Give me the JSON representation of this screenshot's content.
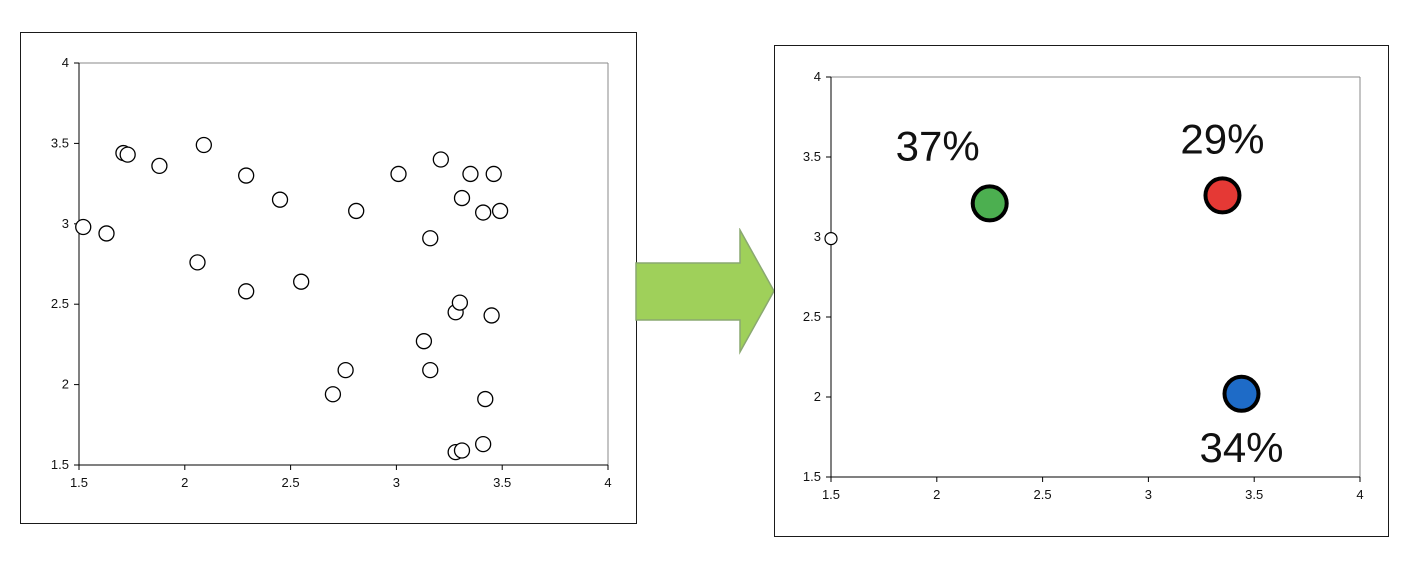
{
  "chart_data": [
    {
      "type": "scatter",
      "xlim": [
        1.5,
        4
      ],
      "ylim": [
        1.5,
        4
      ],
      "xticks": [
        "1.5",
        "2",
        "2.5",
        "3",
        "3.5",
        "4"
      ],
      "yticks": [
        "1.5",
        "2",
        "2.5",
        "3",
        "3.5",
        "4"
      ],
      "grid": false,
      "marker_fill": "#ffffff",
      "marker_edge": "#000000",
      "points": [
        [
          1.52,
          2.98
        ],
        [
          1.63,
          2.94
        ],
        [
          1.71,
          3.44
        ],
        [
          1.73,
          3.43
        ],
        [
          1.88,
          3.36
        ],
        [
          2.06,
          2.76
        ],
        [
          2.09,
          3.49
        ],
        [
          2.29,
          3.3
        ],
        [
          2.29,
          2.58
        ],
        [
          2.45,
          3.15
        ],
        [
          2.55,
          2.64
        ],
        [
          2.7,
          1.94
        ],
        [
          2.76,
          2.09
        ],
        [
          2.81,
          3.08
        ],
        [
          3.01,
          3.31
        ],
        [
          3.13,
          2.27
        ],
        [
          3.16,
          2.91
        ],
        [
          3.16,
          2.09
        ],
        [
          3.21,
          3.4
        ],
        [
          3.28,
          2.45
        ],
        [
          3.28,
          1.58
        ],
        [
          3.3,
          2.51
        ],
        [
          3.31,
          3.16
        ],
        [
          3.31,
          1.59
        ],
        [
          3.35,
          3.31
        ],
        [
          3.41,
          3.07
        ],
        [
          3.41,
          1.63
        ],
        [
          3.42,
          1.91
        ],
        [
          3.45,
          2.43
        ],
        [
          3.46,
          3.31
        ],
        [
          3.49,
          3.08
        ]
      ]
    },
    {
      "type": "scatter",
      "xlim": [
        1.5,
        4
      ],
      "ylim": [
        1.5,
        4
      ],
      "xticks": [
        "1.5",
        "2",
        "2.5",
        "3",
        "3.5",
        "4"
      ],
      "yticks": [
        "1.5",
        "2",
        "2.5",
        "3",
        "3.5",
        "4"
      ],
      "grid": false,
      "partial_point": [
        1.5,
        2.99
      ],
      "centroids": [
        {
          "x": 2.25,
          "y": 3.21,
          "label": "37%",
          "color": "#4caf50",
          "label_position": "upper-left"
        },
        {
          "x": 3.35,
          "y": 3.26,
          "label": "29%",
          "color": "#e53935",
          "label_position": "above"
        },
        {
          "x": 3.44,
          "y": 2.02,
          "label": "34%",
          "color": "#1e6bc7",
          "label_position": "below"
        }
      ]
    }
  ],
  "arrow": {
    "fill": "#9fd05a",
    "stroke": "#8aa870"
  }
}
